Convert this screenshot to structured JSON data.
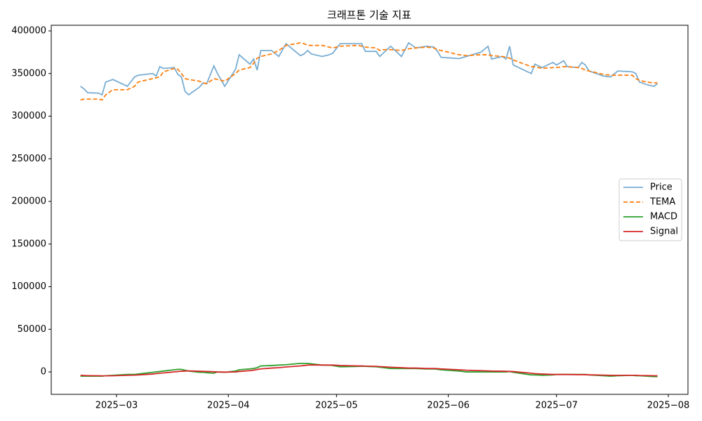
{
  "chart_data": {
    "type": "line",
    "title": "크래프톤 기술 지표",
    "x": [
      49,
      50,
      51,
      54,
      55,
      56,
      58,
      62,
      64,
      65,
      69,
      70,
      71,
      72,
      75,
      76,
      77,
      78,
      79,
      82,
      83,
      84,
      86,
      87,
      89,
      92,
      93,
      96,
      97,
      98,
      99,
      102,
      104,
      106,
      110,
      111,
      112,
      113,
      116,
      118,
      119,
      121,
      126,
      127,
      128,
      131,
      132,
      133,
      135,
      138,
      140,
      142,
      145,
      147,
      148,
      149,
      154,
      156,
      160,
      162,
      163,
      166,
      167,
      168,
      169,
      174,
      175,
      177,
      180,
      181,
      183,
      184,
      187,
      188,
      189,
      190,
      194,
      196,
      198,
      202,
      203,
      204,
      206,
      208,
      209
    ],
    "xlim": [
      40.9,
      217.45
    ],
    "xticks": [
      {
        "value": 59,
        "label": "2025−03"
      },
      {
        "value": 90,
        "label": "2025−04"
      },
      {
        "value": 120,
        "label": "2025−05"
      },
      {
        "value": 151,
        "label": "2025−06"
      },
      {
        "value": 181,
        "label": "2025−07"
      },
      {
        "value": 212,
        "label": "2025−08"
      }
    ],
    "ylim": [
      -26300,
      406600
    ],
    "yticks": [
      0,
      50000,
      100000,
      150000,
      200000,
      250000,
      300000,
      350000,
      400000
    ],
    "legend": "center right",
    "series": [
      {
        "name": "Price",
        "color": "#1f77b4",
        "opacity": 0.6,
        "linestyle": "solid",
        "values": [
          335000,
          332000,
          327500,
          327000,
          325000,
          340000,
          343000,
          335000,
          346000,
          348000,
          350000,
          347000,
          358000,
          356000,
          357000,
          349000,
          346000,
          329000,
          325000,
          334000,
          339000,
          338000,
          359000,
          350000,
          335000,
          355000,
          372000,
          361000,
          367000,
          354000,
          377000,
          377000,
          370000,
          385000,
          371000,
          373000,
          377000,
          373000,
          370000,
          372000,
          374000,
          385000,
          385000,
          385000,
          376000,
          376000,
          370000,
          374000,
          382000,
          370000,
          386000,
          380000,
          382000,
          381000,
          376000,
          369000,
          367500,
          370000,
          375000,
          382000,
          367000,
          370000,
          367000,
          382000,
          360000,
          350000,
          361000,
          357000,
          363000,
          360000,
          365000,
          358000,
          357000,
          363000,
          360000,
          353000,
          347000,
          346000,
          353000,
          352000,
          350000,
          340000,
          337000,
          335000,
          338000
        ]
      },
      {
        "name": "TEMA",
        "color": "#ff7f0e",
        "opacity": 1,
        "linestyle": "dashed",
        "values": [
          319000,
          320000,
          320000,
          320000,
          319000,
          325000,
          331000,
          331000,
          335000,
          340000,
          344000,
          345000,
          346000,
          352000,
          356000,
          355000,
          350000,
          344000,
          343000,
          341000,
          339000,
          338000,
          344000,
          343000,
          341000,
          350000,
          354000,
          357000,
          362000,
          368000,
          370000,
          373000,
          377000,
          383000,
          386000,
          385000,
          383000,
          383000,
          383000,
          381000,
          380000,
          382000,
          383000,
          382000,
          381000,
          380000,
          377000,
          378000,
          378000,
          377000,
          379000,
          380000,
          381000,
          380000,
          378000,
          377000,
          372000,
          371000,
          372000,
          372000,
          371000,
          370000,
          369000,
          368000,
          366000,
          358000,
          358000,
          356000,
          357000,
          357000,
          358000,
          358000,
          357000,
          356000,
          354000,
          353000,
          349000,
          348000,
          348000,
          348000,
          344000,
          342000,
          340000,
          339000,
          339000
        ]
      },
      {
        "name": "MACD",
        "color": "#2ca02c",
        "opacity": 1,
        "linestyle": "solid",
        "values": [
          -5000,
          -5000,
          -5000,
          -5000,
          -5000,
          -4500,
          -4000,
          -3000,
          -3000,
          -2500,
          -500,
          0,
          500,
          1000,
          2500,
          3000,
          3000,
          2000,
          1000,
          -500,
          -500,
          -1000,
          -1500,
          0,
          -500,
          1000,
          2500,
          3500,
          4000,
          5000,
          7000,
          7500,
          8000,
          8500,
          10000,
          10000,
          10000,
          9500,
          8000,
          8000,
          7500,
          6000,
          6500,
          6500,
          6500,
          6000,
          5500,
          5000,
          4000,
          4000,
          4000,
          4000,
          3500,
          3500,
          3000,
          2500,
          1000,
          0,
          0,
          0,
          0,
          0,
          0,
          500,
          -500,
          -3500,
          -3500,
          -4000,
          -3500,
          -3000,
          -3000,
          -3000,
          -3000,
          -3000,
          -3000,
          -3500,
          -4500,
          -5000,
          -4500,
          -4000,
          -4500,
          -4500,
          -5000,
          -5500,
          -5500
        ]
      },
      {
        "name": "Signal",
        "color": "#d62728",
        "opacity": 1,
        "linestyle": "solid",
        "values": [
          -4000,
          -4200,
          -4400,
          -4500,
          -4600,
          -4600,
          -4500,
          -4000,
          -3800,
          -3500,
          -2500,
          -2000,
          -1500,
          -1200,
          0,
          500,
          800,
          1000,
          1200,
          800,
          600,
          500,
          200,
          0,
          -200,
          0,
          500,
          1500,
          2000,
          2800,
          3500,
          4500,
          5000,
          5800,
          7000,
          7500,
          8000,
          8200,
          8000,
          8000,
          8000,
          7500,
          7000,
          7000,
          6800,
          6500,
          6200,
          6000,
          5500,
          5000,
          4500,
          4500,
          4000,
          4000,
          3800,
          3500,
          2500,
          2000,
          1500,
          1200,
          1000,
          800,
          700,
          600,
          400,
          -1500,
          -2000,
          -2500,
          -3000,
          -3000,
          -3000,
          -3000,
          -3200,
          -3200,
          -3300,
          -3400,
          -3800,
          -4000,
          -4000,
          -4000,
          -4000,
          -4200,
          -4300,
          -4500,
          -4500
        ]
      }
    ]
  }
}
